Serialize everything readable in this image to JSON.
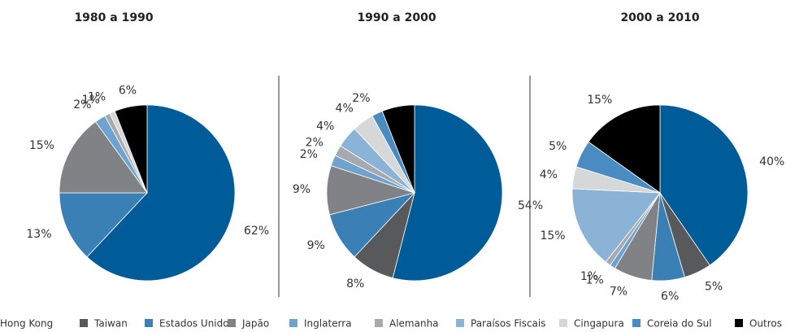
{
  "legend": {
    "categories": [
      "Hong Kong",
      "Taiwan",
      "Estados Unidos",
      "Japão",
      "Inglaterra",
      "Alemanha",
      "Paraísos Fiscais",
      "Cingapura",
      "Coreia do Sul",
      "Outros"
    ],
    "colors": [
      "#005b99",
      "#58595b",
      "#3a80b5",
      "#808285",
      "#6fa3cf",
      "#a7a9ac",
      "#8ab3d5",
      "#d6d7d8",
      "#4a8cc2",
      "#000000"
    ]
  },
  "chart_data": [
    {
      "type": "pie",
      "title": "1980 a 1990",
      "values": [
        62,
        null,
        13,
        15,
        2,
        1,
        null,
        1,
        null,
        6
      ],
      "value_labels": [
        "62%",
        null,
        "13%",
        "15%",
        "2%",
        "1%",
        null,
        "1%",
        null,
        "6%"
      ]
    },
    {
      "type": "pie",
      "title": "1990 a 2000",
      "values": [
        54,
        8,
        9,
        9,
        2,
        2,
        4,
        4,
        2,
        6
      ],
      "value_labels": [
        "54%",
        "8%",
        "9%",
        "9%",
        "2%",
        "2%",
        "4%",
        "4%",
        "2%",
        null
      ]
    },
    {
      "type": "pie",
      "title": "2000 a 2010",
      "values": [
        40,
        5,
        6,
        7,
        1,
        1,
        15,
        4,
        5,
        15
      ],
      "value_labels": [
        "40%",
        "5%",
        "6%",
        "7%",
        "1%",
        "1%",
        "15%",
        "4%",
        "5%",
        "15%"
      ]
    }
  ]
}
